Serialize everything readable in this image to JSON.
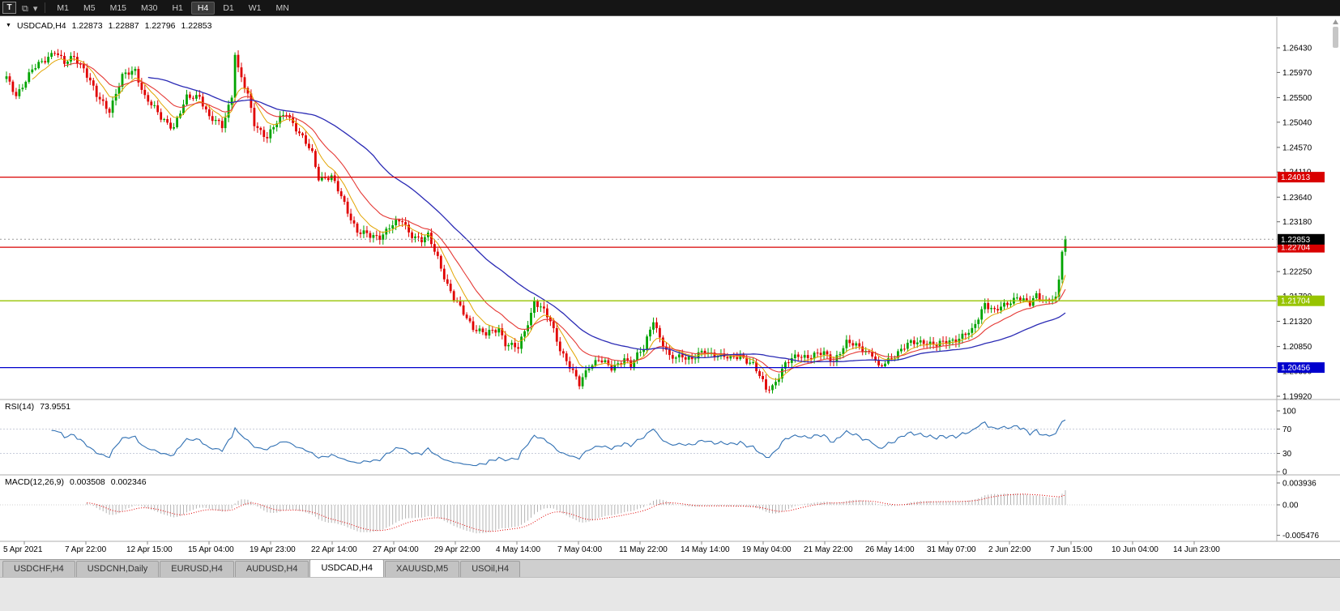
{
  "toolbar": {
    "pointer_button_label": "T",
    "icons": [
      {
        "name": "templates-icon",
        "glyph": "⧉"
      },
      {
        "name": "dropdown-caret-icon",
        "glyph": "▾"
      }
    ],
    "timeframes": [
      "M1",
      "M5",
      "M15",
      "M30",
      "H1",
      "H4",
      "D1",
      "W1",
      "MN"
    ],
    "active_timeframe": "H4"
  },
  "header": {
    "collapse_glyph": "▼",
    "symbol": "USDCAD,H4",
    "open": "1.22873",
    "high": "1.22887",
    "low": "1.22796",
    "close": "1.22853"
  },
  "price_axis": {
    "ticks": [
      "1.26430",
      "1.25970",
      "1.25500",
      "1.25040",
      "1.24570",
      "1.24110",
      "1.23640",
      "1.23180",
      "1.22710",
      "1.22250",
      "1.21790",
      "1.21320",
      "1.20850",
      "1.20390",
      "1.19920"
    ],
    "tags": [
      {
        "value": "1.24013",
        "color": "#d90000"
      },
      {
        "value": "1.22704",
        "color": "#d90000"
      },
      {
        "value": "1.21704",
        "color": "#97c400"
      },
      {
        "value": "1.20456",
        "color": "#0000cd"
      },
      {
        "value": "1.22853",
        "color": "#000000"
      }
    ]
  },
  "hlines": [
    {
      "price": 1.24013,
      "color": "#d90000"
    },
    {
      "price": 1.22704,
      "color": "#d90000"
    },
    {
      "price": 1.21704,
      "color": "#97c400"
    },
    {
      "price": 1.20456,
      "color": "#0000cd"
    }
  ],
  "rsi": {
    "name": "RSI(14)",
    "value": "73.9551",
    "period": 14,
    "color": "#3070b3",
    "levels": [
      {
        "label": "100",
        "v": 100
      },
      {
        "label": "70",
        "v": 70
      },
      {
        "label": "30",
        "v": 30
      },
      {
        "label": "0",
        "v": 0
      }
    ]
  },
  "macd": {
    "name": "MACD(12,26,9)",
    "value_main": "0.003508",
    "value_signal": "0.002346",
    "fast": 12,
    "slow": 26,
    "signal": 9,
    "axis_top": "0.003936",
    "axis_zero": "0.00",
    "axis_bottom": "-0.005476",
    "hist_color": "#b4b4b4",
    "signal_color": "#e00000"
  },
  "time_axis": [
    "5 Apr 2021",
    "7 Apr 22:00",
    "12 Apr 15:00",
    "15 Apr 04:00",
    "19 Apr 23:00",
    "22 Apr 14:00",
    "27 Apr 04:00",
    "29 Apr 22:00",
    "4 May 14:00",
    "7 May 04:00",
    "11 May 22:00",
    "14 May 14:00",
    "19 May 04:00",
    "21 May 22:00",
    "26 May 14:00",
    "31 May 07:00",
    "2 Jun 22:00",
    "7 Jun 15:00",
    "10 Jun 04:00",
    "14 Jun 23:00"
  ],
  "tabs": [
    {
      "label": "USDCHF,H4",
      "active": false
    },
    {
      "label": "USDCNH,Daily",
      "active": false
    },
    {
      "label": "EURUSD,H4",
      "active": false
    },
    {
      "label": "AUDUSD,H4",
      "active": false
    },
    {
      "label": "USDCAD,H4",
      "active": true
    },
    {
      "label": "XAUUSD,M5",
      "active": false
    },
    {
      "label": "USOil,H4",
      "active": false
    }
  ],
  "chart_data": {
    "type": "candlestick",
    "symbol": "USDCAD",
    "timeframe": "H4",
    "current_price": 1.22853,
    "price_range": [
      1.1992,
      1.265
    ],
    "n_candles": 330,
    "up_color": "#00a400",
    "down_color": "#e00000",
    "ma_fast_color": "#e2a400",
    "ma_mid_color": "#e53935",
    "ma_slow_color": "#2b2bb5",
    "close_path": [
      [
        0,
        1.2585
      ],
      [
        3,
        1.2556
      ],
      [
        8,
        1.26
      ],
      [
        13,
        1.2628
      ],
      [
        15,
        1.2638
      ],
      [
        18,
        1.2612
      ],
      [
        21,
        1.2628
      ],
      [
        24,
        1.2605
      ],
      [
        28,
        1.2552
      ],
      [
        32,
        1.2528
      ],
      [
        36,
        1.2588
      ],
      [
        40,
        1.2602
      ],
      [
        43,
        1.2552
      ],
      [
        48,
        1.2512
      ],
      [
        52,
        1.2496
      ],
      [
        56,
        1.2548
      ],
      [
        60,
        1.2555
      ],
      [
        63,
        1.2512
      ],
      [
        67,
        1.2496
      ],
      [
        70,
        1.2555
      ],
      [
        71,
        1.2635
      ],
      [
        72,
        1.2602
      ],
      [
        75,
        1.2552
      ],
      [
        77,
        1.2502
      ],
      [
        81,
        1.2476
      ],
      [
        85,
        1.251
      ],
      [
        87,
        1.2524
      ],
      [
        91,
        1.2482
      ],
      [
        95,
        1.2445
      ],
      [
        97,
        1.2402
      ],
      [
        101,
        1.24
      ],
      [
        105,
        1.2352
      ],
      [
        109,
        1.23
      ],
      [
        113,
        1.229
      ],
      [
        116,
        1.2292
      ],
      [
        119,
        1.2308
      ],
      [
        123,
        1.232
      ],
      [
        125,
        1.23
      ],
      [
        129,
        1.2282
      ],
      [
        131,
        1.229
      ],
      [
        134,
        1.2252
      ],
      [
        137,
        1.22
      ],
      [
        139,
        1.2172
      ],
      [
        143,
        1.214
      ],
      [
        145,
        1.2122
      ],
      [
        149,
        1.2106
      ],
      [
        153,
        1.212
      ],
      [
        155,
        1.2092
      ],
      [
        159,
        1.208
      ],
      [
        163,
        1.2148
      ],
      [
        164,
        1.2172
      ],
      [
        167,
        1.215
      ],
      [
        169,
        1.213
      ],
      [
        172,
        1.2082
      ],
      [
        174,
        1.206
      ],
      [
        178,
        1.2012
      ],
      [
        181,
        1.205
      ],
      [
        184,
        1.2062
      ],
      [
        188,
        1.2042
      ],
      [
        192,
        1.2065
      ],
      [
        194,
        1.205
      ],
      [
        198,
        1.2082
      ],
      [
        201,
        1.2138
      ],
      [
        203,
        1.21
      ],
      [
        206,
        1.2062
      ],
      [
        210,
        1.207
      ],
      [
        213,
        1.206
      ],
      [
        217,
        1.2076
      ],
      [
        221,
        1.207
      ],
      [
        225,
        1.206
      ],
      [
        228,
        1.207
      ],
      [
        232,
        1.205
      ],
      [
        236,
        1.2006
      ],
      [
        238,
        1.2012
      ],
      [
        242,
        1.205
      ],
      [
        246,
        1.207
      ],
      [
        250,
        1.2066
      ],
      [
        254,
        1.2072
      ],
      [
        257,
        1.206
      ],
      [
        261,
        1.209
      ],
      [
        265,
        1.2086
      ],
      [
        269,
        1.207
      ],
      [
        271,
        1.2042
      ],
      [
        274,
        1.206
      ],
      [
        278,
        1.208
      ],
      [
        281,
        1.209
      ],
      [
        285,
        1.2096
      ],
      [
        289,
        1.2086
      ],
      [
        293,
        1.2096
      ],
      [
        296,
        1.2102
      ],
      [
        300,
        1.2112
      ],
      [
        304,
        1.2168
      ],
      [
        307,
        1.215
      ],
      [
        310,
        1.216
      ],
      [
        314,
        1.218
      ],
      [
        318,
        1.2162
      ],
      [
        320,
        1.218
      ],
      [
        323,
        1.2172
      ],
      [
        326,
        1.2178
      ],
      [
        327,
        1.221
      ],
      [
        328,
        1.2262
      ],
      [
        329,
        1.22853
      ]
    ]
  }
}
